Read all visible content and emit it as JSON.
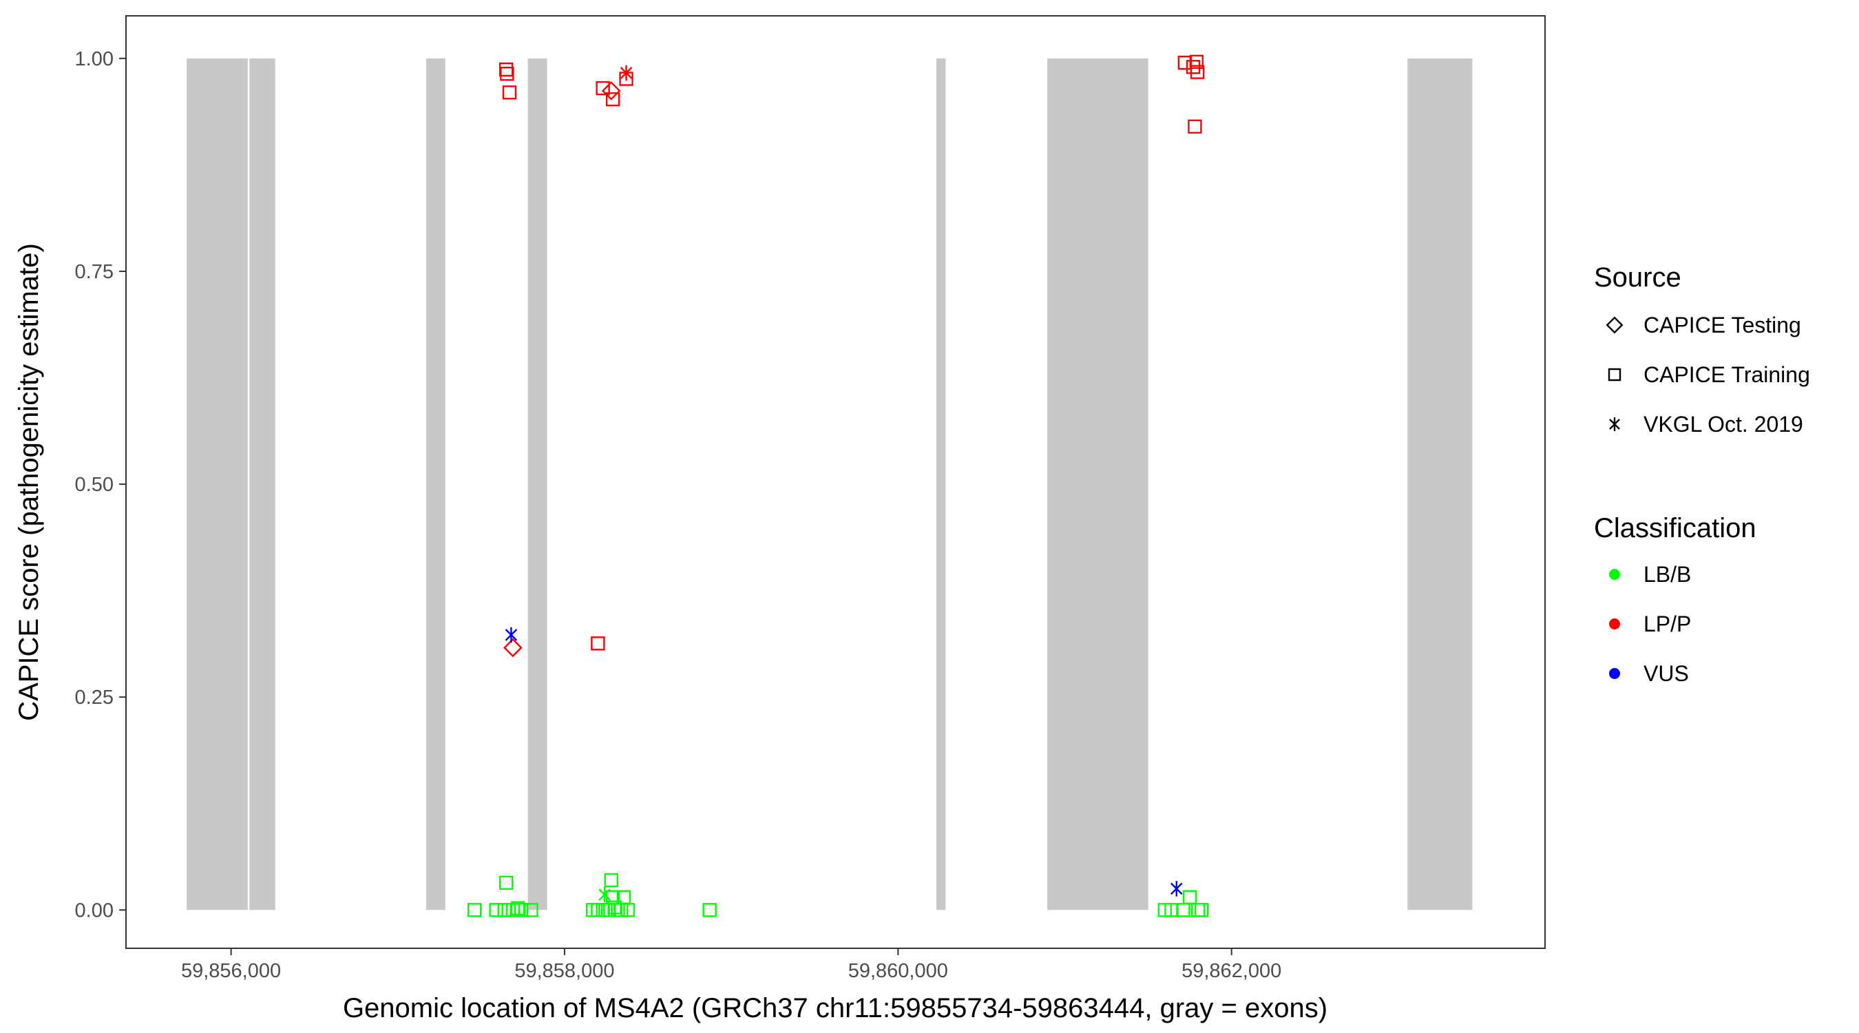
{
  "chart_data": {
    "type": "scatter",
    "xlabel": "Genomic location of MS4A2 (GRCh37 chr11:59855734-59863444, gray = exons)",
    "ylabel": "CAPICE score (pathogenicity estimate)",
    "xlim": [
      59855370,
      59863880
    ],
    "ylim": [
      -0.045,
      1.05
    ],
    "x_ticks": [
      59856000,
      59858000,
      59860000,
      59862000
    ],
    "x_tick_labels": [
      "59,856,000",
      "59,858,000",
      "59,860,000",
      "59,862,000"
    ],
    "y_ticks": [
      0,
      0.25,
      0.5,
      0.75,
      1.0
    ],
    "y_tick_labels": [
      "0.00",
      "0.25",
      "0.50",
      "0.75",
      "1.00"
    ],
    "grid": false,
    "exon_color": "#c8c8c8",
    "exons": [
      {
        "start": 59855734,
        "end": 59856100
      },
      {
        "start": 59856110,
        "end": 59856265
      },
      {
        "start": 59857170,
        "end": 59857285
      },
      {
        "start": 59857780,
        "end": 59857895
      },
      {
        "start": 59860230,
        "end": 59860285
      },
      {
        "start": 59860895,
        "end": 59861500
      },
      {
        "start": 59863055,
        "end": 59863444
      }
    ],
    "legend": {
      "position": "right",
      "source": {
        "title": "Source",
        "entries": [
          {
            "label": "CAPICE Testing",
            "shape": "diamond"
          },
          {
            "label": "CAPICE Training",
            "shape": "square"
          },
          {
            "label": "VKGL Oct. 2019",
            "shape": "asterisk"
          }
        ]
      },
      "classification": {
        "title": "Classification",
        "entries": [
          {
            "label": "LB/B",
            "color": "#00ff00"
          },
          {
            "label": "LP/P",
            "color": "#ff0000"
          },
          {
            "label": "VUS",
            "color": "#0000ff"
          }
        ]
      }
    },
    "series": [
      {
        "source": "CAPICE Training",
        "classification": "LP/P",
        "points": [
          [
            59857650,
            0.987
          ],
          [
            59857655,
            0.982
          ],
          [
            59857670,
            0.96
          ],
          [
            59858230,
            0.965
          ],
          [
            59858290,
            0.952
          ],
          [
            59858370,
            0.976
          ],
          [
            59858200,
            0.313
          ],
          [
            59861720,
            0.995
          ],
          [
            59861770,
            0.99
          ],
          [
            59861790,
            0.996
          ],
          [
            59861795,
            0.984
          ],
          [
            59861780,
            0.92
          ]
        ]
      },
      {
        "source": "CAPICE Testing",
        "classification": "LP/P",
        "points": [
          [
            59858280,
            0.962
          ],
          [
            59857690,
            0.308
          ]
        ]
      },
      {
        "source": "VKGL Oct. 2019",
        "classification": "LP/P",
        "points": [
          [
            59858370,
            0.983
          ]
        ]
      },
      {
        "source": "VKGL Oct. 2019",
        "classification": "VUS",
        "points": [
          [
            59857680,
            0.323
          ],
          [
            59861670,
            0.025
          ]
        ]
      },
      {
        "source": "VKGL Oct. 2019",
        "classification": "LB/B",
        "points": [
          [
            59858240,
            0.018
          ]
        ]
      },
      {
        "source": "CAPICE Training",
        "classification": "LB/B",
        "points": [
          [
            59857460,
            0.0
          ],
          [
            59857590,
            0.0
          ],
          [
            59857640,
            0.0
          ],
          [
            59857650,
            0.032
          ],
          [
            59857690,
            0.0
          ],
          [
            59857720,
            0.002
          ],
          [
            59857740,
            0.0
          ],
          [
            59857800,
            0.0
          ],
          [
            59858170,
            0.0
          ],
          [
            59858200,
            0.0
          ],
          [
            59858230,
            0.0
          ],
          [
            59858260,
            0.0
          ],
          [
            59858280,
            0.035
          ],
          [
            59858290,
            0.015
          ],
          [
            59858300,
            0.003
          ],
          [
            59858320,
            0.0
          ],
          [
            59858340,
            0.0
          ],
          [
            59858355,
            0.015
          ],
          [
            59858380,
            0.0
          ],
          [
            59858870,
            0.0
          ],
          [
            59861600,
            0.0
          ],
          [
            59861640,
            0.0
          ],
          [
            59861710,
            0.0
          ],
          [
            59861750,
            0.015
          ],
          [
            59861800,
            0.0
          ],
          [
            59861820,
            0.0
          ]
        ]
      }
    ]
  }
}
